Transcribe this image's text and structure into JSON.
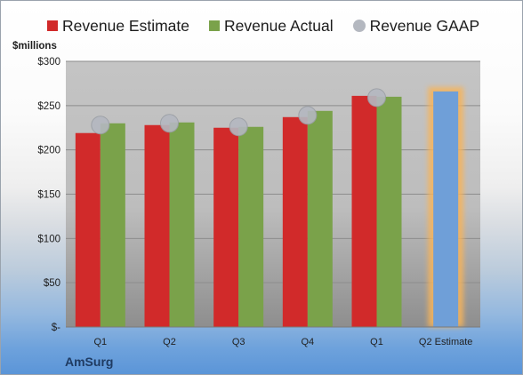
{
  "chart_data": {
    "type": "bar",
    "ylabel": "$millions",
    "categories": [
      "Q1",
      "Q2",
      "Q3",
      "Q4",
      "Q1",
      "Q2 Estimate"
    ],
    "ylim": [
      0,
      300
    ],
    "yticks": [
      {
        "value": 0,
        "label": "$-"
      },
      {
        "value": 50,
        "label": "$50"
      },
      {
        "value": 100,
        "label": "$100"
      },
      {
        "value": 150,
        "label": "$150"
      },
      {
        "value": 200,
        "label": "$200"
      },
      {
        "value": 250,
        "label": "$250"
      },
      {
        "value": 300,
        "label": "$300"
      }
    ],
    "grid": true,
    "legend_position": "top",
    "series": [
      {
        "name": "Revenue Estimate",
        "type": "bar",
        "color": "#d12a2a",
        "values": [
          219,
          228,
          225,
          237,
          261,
          null
        ]
      },
      {
        "name": "Revenue Actual",
        "type": "bar",
        "color": "#7aa24a",
        "values": [
          230,
          231,
          226,
          244,
          260,
          null
        ]
      },
      {
        "name": "Revenue GAAP",
        "type": "marker",
        "color": "#b4b8c0",
        "values": [
          228,
          230,
          226,
          239,
          259,
          null
        ]
      },
      {
        "name": "Revenue Estimate",
        "type": "bar",
        "color": "#6f9fd8",
        "values": [
          null,
          null,
          null,
          null,
          null,
          266
        ],
        "highlight": true
      }
    ]
  },
  "company": "AmSurg"
}
